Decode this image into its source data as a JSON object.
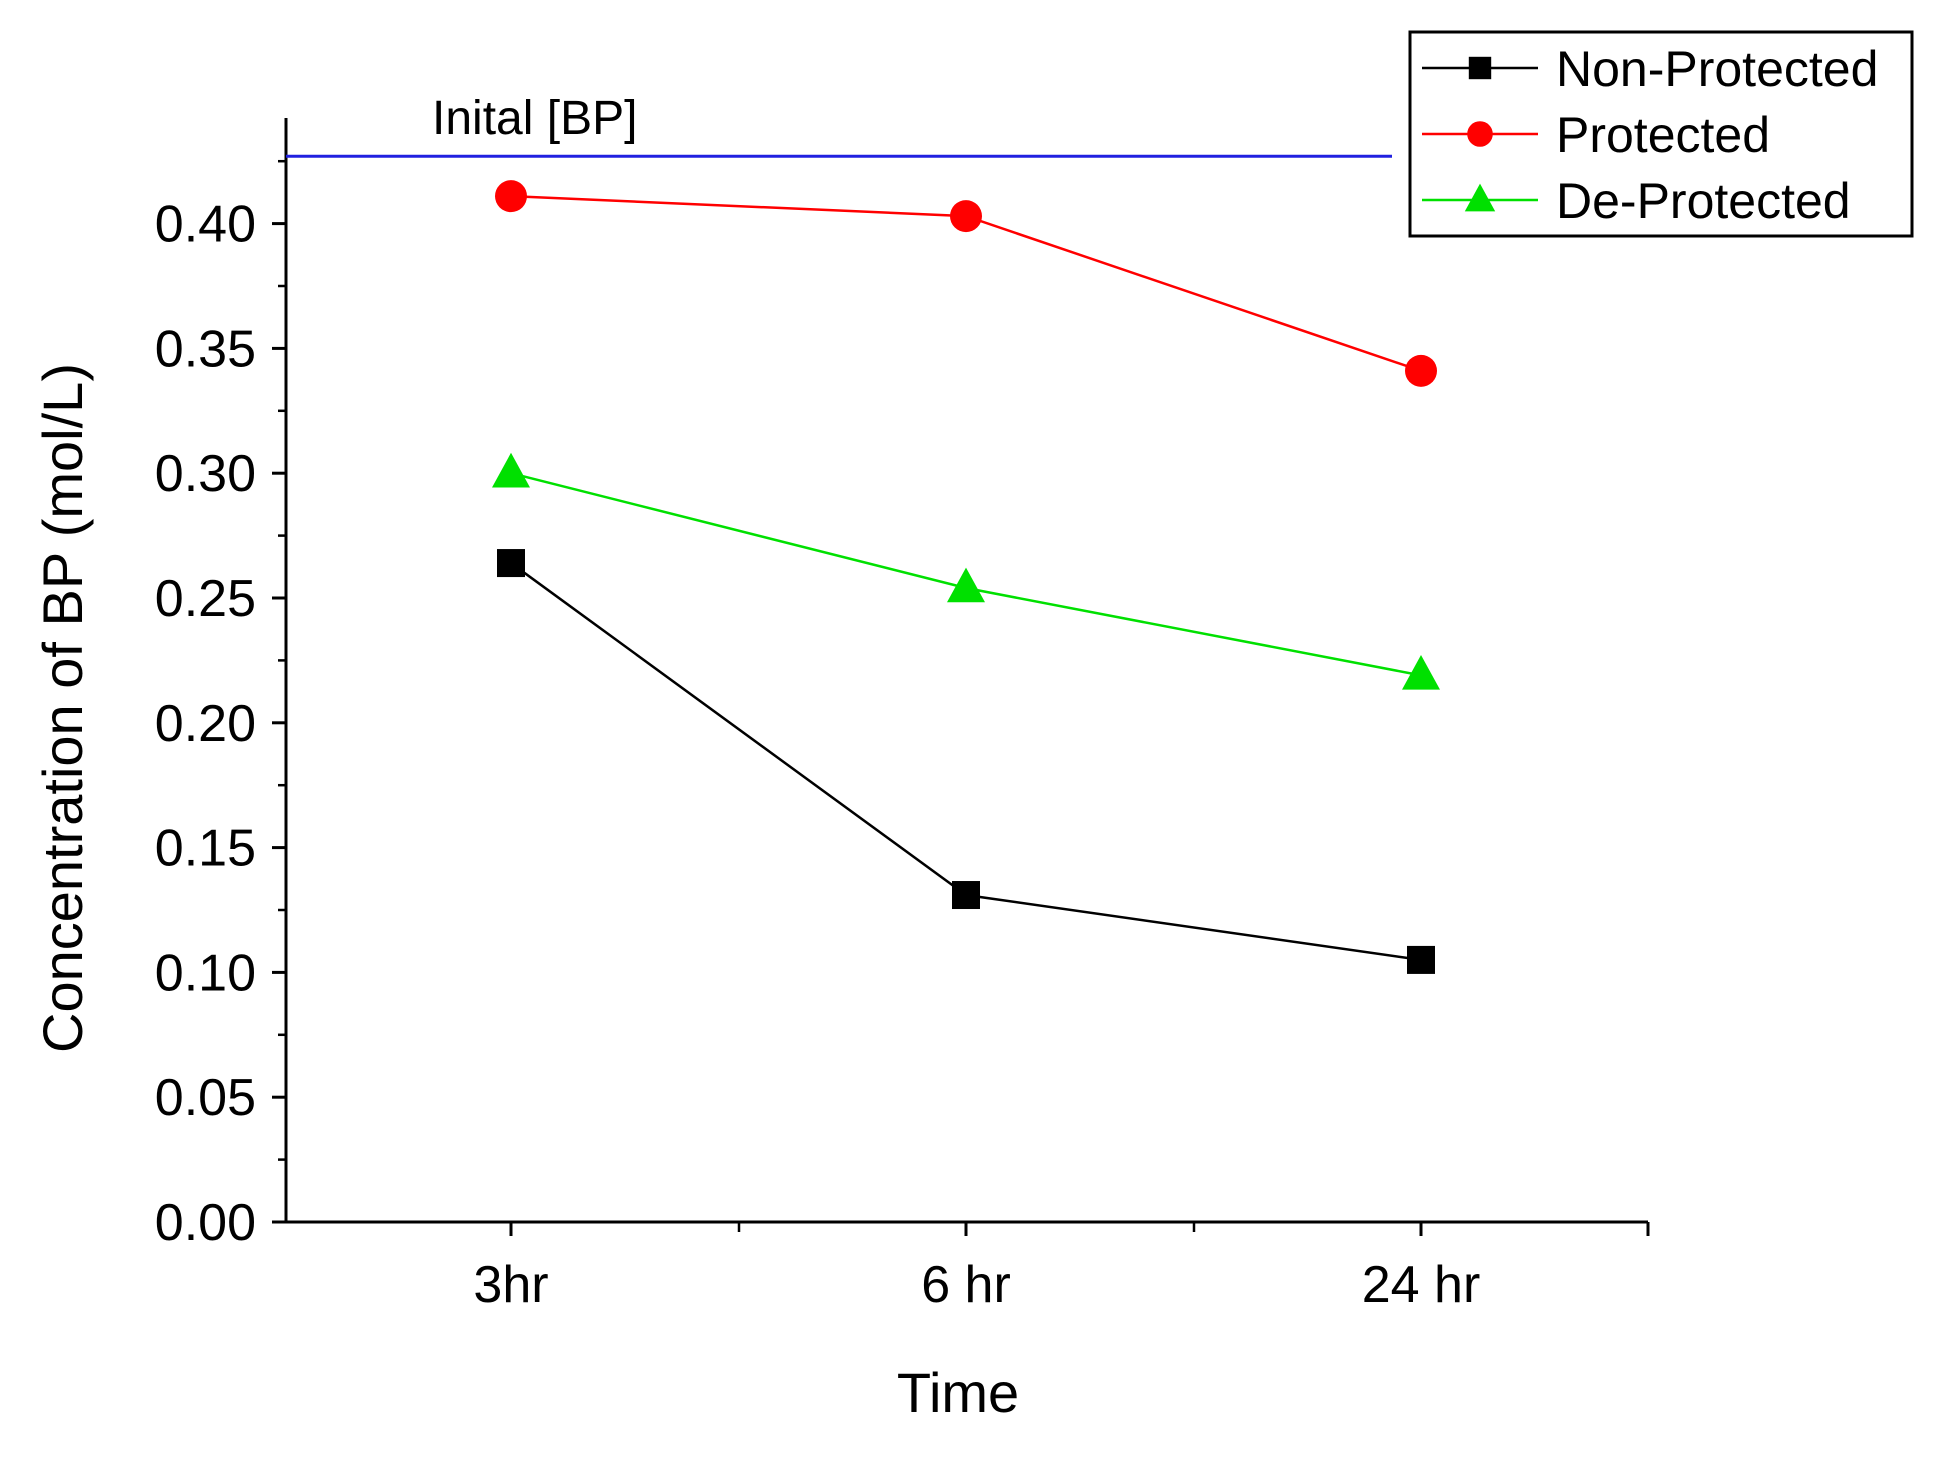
{
  "chart_data": {
    "type": "line",
    "title": "",
    "xlabel": "Time",
    "ylabel": "Concentration of BP (mol/L)",
    "categories": [
      "3hr",
      "6 hr",
      "24 hr"
    ],
    "ylim": [
      0,
      0.44
    ],
    "yticks": [
      "0.00",
      "0.05",
      "0.10",
      "0.15",
      "0.20",
      "0.25",
      "0.30",
      "0.35",
      "0.40"
    ],
    "ytick_values": [
      0,
      0.05,
      0.1,
      0.15,
      0.2,
      0.25,
      0.3,
      0.35,
      0.4
    ],
    "reference_line": {
      "label": "Inital [BP]",
      "value": 0.427,
      "color": "#2020e0"
    },
    "legend_position": "top-right",
    "series": [
      {
        "name": "Non-Protected",
        "values": [
          0.264,
          0.131,
          0.105
        ],
        "color": "#000000",
        "marker": "square"
      },
      {
        "name": "Protected",
        "values": [
          0.411,
          0.403,
          0.341
        ],
        "color": "#ff0000",
        "marker": "circle"
      },
      {
        "name": "De-Protected",
        "values": [
          0.3,
          0.254,
          0.219
        ],
        "color": "#00e000",
        "marker": "triangle"
      }
    ]
  }
}
